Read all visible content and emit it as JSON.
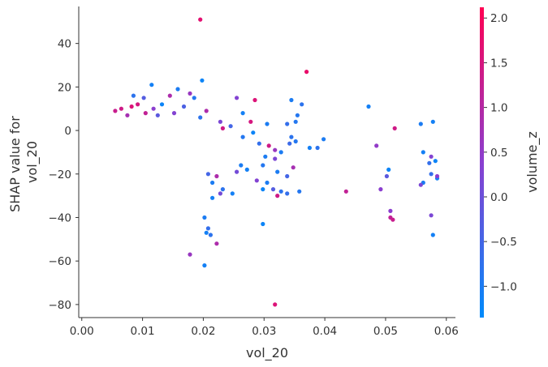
{
  "chart_data": {
    "type": "scatter",
    "title": "",
    "xlabel": "vol_20",
    "ylabel_lines": [
      "SHAP value for",
      "vol_20"
    ],
    "xlim": [
      -0.0005,
      0.0615
    ],
    "ylim": [
      -86,
      57
    ],
    "xticks": [
      0.0,
      0.01,
      0.02,
      0.03,
      0.04,
      0.05,
      0.06
    ],
    "xtick_labels": [
      "0.00",
      "0.01",
      "0.02",
      "0.03",
      "0.04",
      "0.05",
      "0.06"
    ],
    "yticks": [
      40,
      20,
      0,
      -20,
      -40,
      -60,
      -80
    ],
    "ytick_labels": [
      "40",
      "20",
      "0",
      "−20",
      "−40",
      "−60",
      "−80"
    ],
    "grid": false,
    "colorbar": {
      "label": "volume_z",
      "range": [
        -1.35,
        2.12
      ],
      "ticks": [
        2.0,
        1.5,
        1.0,
        0.5,
        0.0,
        -0.5,
        -1.0
      ],
      "tick_labels": [
        "2.0",
        "1.5",
        "1.0",
        "0.5",
        "0.0",
        "−0.5",
        "−1.0"
      ],
      "color_low": "#008bfb",
      "color_mid": "#8a3fd0",
      "color_high": "#ff0052"
    },
    "points": [
      [
        0.0195,
        51,
        1.7
      ],
      [
        0.037,
        27,
        1.8
      ],
      [
        0.0115,
        21,
        -1.1
      ],
      [
        0.0158,
        19,
        -1.0
      ],
      [
        0.0198,
        23,
        -1.2
      ],
      [
        0.0085,
        16,
        -0.8
      ],
      [
        0.0145,
        16,
        0.9
      ],
      [
        0.0102,
        15,
        -0.3
      ],
      [
        0.0178,
        17,
        0.6
      ],
      [
        0.0185,
        15,
        -0.9
      ],
      [
        0.0255,
        15,
        0.3
      ],
      [
        0.0285,
        14,
        1.6
      ],
      [
        0.0345,
        14,
        -1.0
      ],
      [
        0.0362,
        12,
        -0.8
      ],
      [
        0.0472,
        11,
        -1.1
      ],
      [
        0.0118,
        10,
        0.4
      ],
      [
        0.0082,
        11,
        1.6
      ],
      [
        0.0132,
        12,
        -1.2
      ],
      [
        0.0065,
        10,
        1.4
      ],
      [
        0.0055,
        9,
        1.3
      ],
      [
        0.0092,
        12,
        1.5
      ],
      [
        0.0168,
        11,
        -0.4
      ],
      [
        0.0205,
        9,
        0.9
      ],
      [
        0.0265,
        8,
        -1.1
      ],
      [
        0.0355,
        7,
        -0.9
      ],
      [
        0.0075,
        7,
        0.8
      ],
      [
        0.0105,
        8,
        1.2
      ],
      [
        0.0125,
        7,
        -0.2
      ],
      [
        0.0152,
        8,
        0.3
      ],
      [
        0.0195,
        6,
        -0.8
      ],
      [
        0.0305,
        3,
        -1.0
      ],
      [
        0.0338,
        3,
        -0.7
      ],
      [
        0.0352,
        4,
        -0.9
      ],
      [
        0.0515,
        1,
        1.4
      ],
      [
        0.0558,
        3,
        -1.0
      ],
      [
        0.0578,
        4,
        -1.1
      ],
      [
        0.0278,
        4,
        1.5
      ],
      [
        0.0228,
        4,
        0.2
      ],
      [
        0.0245,
        2,
        -0.5
      ],
      [
        0.0232,
        1,
        1.4
      ],
      [
        0.0282,
        -1,
        -1.2
      ],
      [
        0.0265,
        -3,
        -0.9
      ],
      [
        0.0345,
        -3,
        -0.8
      ],
      [
        0.0352,
        -5,
        -0.9
      ],
      [
        0.0398,
        -4,
        -1.0
      ],
      [
        0.0342,
        -6,
        -0.6
      ],
      [
        0.0292,
        -6,
        -0.7
      ],
      [
        0.0308,
        -7,
        1.4
      ],
      [
        0.0318,
        -9,
        0.6
      ],
      [
        0.0328,
        -10,
        -1.0
      ],
      [
        0.0375,
        -8,
        -1.1
      ],
      [
        0.0388,
        -8,
        -0.8
      ],
      [
        0.0485,
        -7,
        0.5
      ],
      [
        0.0562,
        -10,
        -1.1
      ],
      [
        0.0575,
        -12,
        0.3
      ],
      [
        0.0572,
        -15,
        -0.7
      ],
      [
        0.0582,
        -14,
        -1.2
      ],
      [
        0.0302,
        -12,
        -1.0
      ],
      [
        0.0318,
        -13,
        0.2
      ],
      [
        0.0298,
        -16,
        -0.9
      ],
      [
        0.0262,
        -16,
        -1.0
      ],
      [
        0.0255,
        -19,
        0.1
      ],
      [
        0.0272,
        -18,
        -1.1
      ],
      [
        0.0322,
        -19,
        -1.0
      ],
      [
        0.0348,
        -17,
        0.8
      ],
      [
        0.0338,
        -21,
        -0.5
      ],
      [
        0.0305,
        -24,
        -1.0
      ],
      [
        0.0288,
        -23,
        0.3
      ],
      [
        0.0222,
        -21,
        0.9
      ],
      [
        0.0208,
        -20,
        -0.5
      ],
      [
        0.0215,
        -24,
        -1.0
      ],
      [
        0.0232,
        -27,
        -0.8
      ],
      [
        0.0248,
        -29,
        -1.1
      ],
      [
        0.0228,
        -29,
        0.1
      ],
      [
        0.0215,
        -31,
        -1.1
      ],
      [
        0.0298,
        -27,
        -1.2
      ],
      [
        0.0315,
        -27,
        -0.3
      ],
      [
        0.0322,
        -30,
        1.4
      ],
      [
        0.0328,
        -28,
        -0.8
      ],
      [
        0.0338,
        -29,
        -0.7
      ],
      [
        0.0358,
        -28,
        -0.9
      ],
      [
        0.0435,
        -28,
        1.2
      ],
      [
        0.0492,
        -27,
        0.4
      ],
      [
        0.0505,
        -18,
        -1.2
      ],
      [
        0.0502,
        -21,
        -0.2
      ],
      [
        0.0562,
        -24,
        -1.0
      ],
      [
        0.0558,
        -25,
        0.2
      ],
      [
        0.0575,
        -20,
        -0.7
      ],
      [
        0.0585,
        -22,
        -1.1
      ],
      [
        0.0585,
        -21,
        0.4
      ],
      [
        0.0508,
        -37,
        0.4
      ],
      [
        0.0508,
        -40,
        1.2
      ],
      [
        0.0512,
        -41,
        1.3
      ],
      [
        0.0575,
        -39,
        0.2
      ],
      [
        0.0578,
        -48,
        -1.1
      ],
      [
        0.0298,
        -43,
        -1.2
      ],
      [
        0.0202,
        -40,
        -1.0
      ],
      [
        0.0208,
        -45,
        -0.7
      ],
      [
        0.0205,
        -47,
        -1.1
      ],
      [
        0.0212,
        -48,
        -0.8
      ],
      [
        0.0178,
        -57,
        0.6
      ],
      [
        0.0222,
        -52,
        0.9
      ],
      [
        0.0202,
        -62,
        -1.1
      ],
      [
        0.0318,
        -80,
        1.6
      ]
    ]
  }
}
